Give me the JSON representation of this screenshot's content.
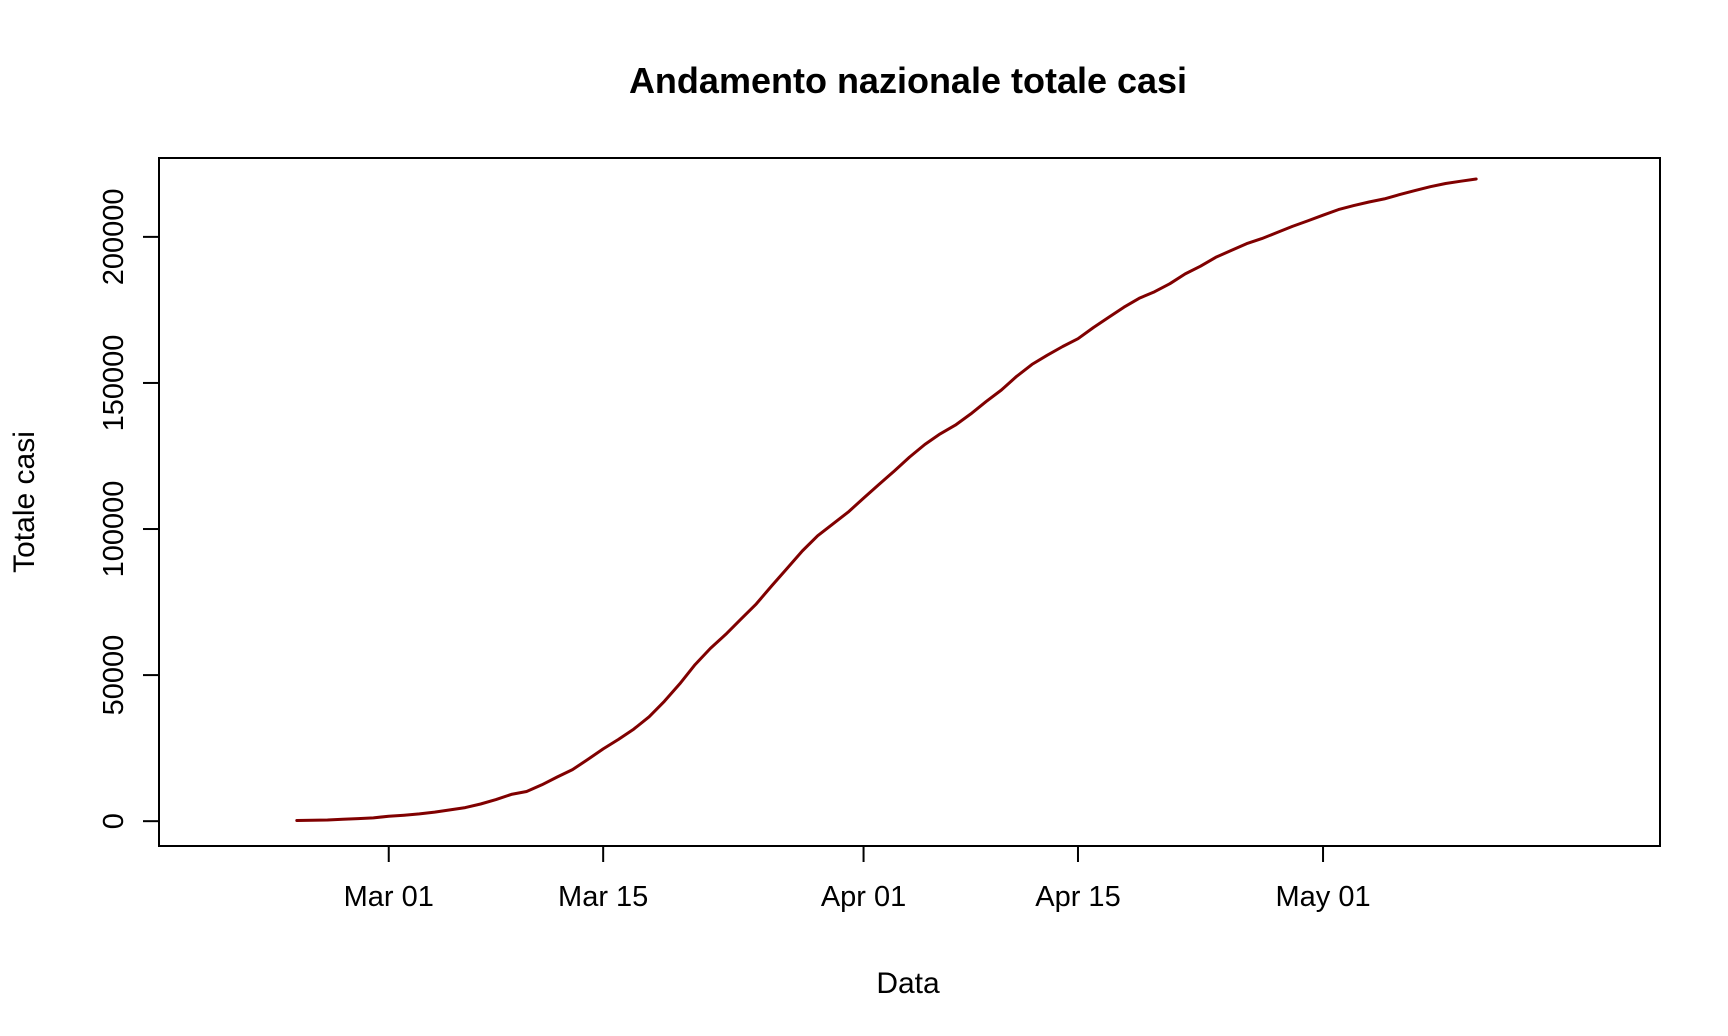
{
  "chart_data": {
    "type": "line",
    "title": "Andamento nazionale totale casi",
    "xlabel": "Data",
    "ylabel": "Totale casi",
    "x_type": "date",
    "xlim": [
      "2020-02-15",
      "2020-05-23"
    ],
    "ylim": [
      -8500,
      227000
    ],
    "x_ticks": [
      {
        "date": "2020-03-01",
        "label": "Mar 01"
      },
      {
        "date": "2020-03-15",
        "label": "Mar 15"
      },
      {
        "date": "2020-04-01",
        "label": "Apr 01"
      },
      {
        "date": "2020-04-15",
        "label": "Apr 15"
      },
      {
        "date": "2020-05-01",
        "label": "May 01"
      }
    ],
    "y_ticks": [
      {
        "value": 0,
        "label": "0"
      },
      {
        "value": 50000,
        "label": "50000"
      },
      {
        "value": 100000,
        "label": "100000"
      },
      {
        "value": 150000,
        "label": "150000"
      },
      {
        "value": 200000,
        "label": "200000"
      }
    ],
    "grid": false,
    "legend": "none",
    "series": [
      {
        "color": "#800000",
        "x": [
          "2020-02-24",
          "2020-02-25",
          "2020-02-26",
          "2020-02-27",
          "2020-02-28",
          "2020-02-29",
          "2020-03-01",
          "2020-03-02",
          "2020-03-03",
          "2020-03-04",
          "2020-03-05",
          "2020-03-06",
          "2020-03-07",
          "2020-03-08",
          "2020-03-09",
          "2020-03-10",
          "2020-03-11",
          "2020-03-12",
          "2020-03-13",
          "2020-03-14",
          "2020-03-15",
          "2020-03-16",
          "2020-03-17",
          "2020-03-18",
          "2020-03-19",
          "2020-03-20",
          "2020-03-21",
          "2020-03-22",
          "2020-03-23",
          "2020-03-24",
          "2020-03-25",
          "2020-03-26",
          "2020-03-27",
          "2020-03-28",
          "2020-03-29",
          "2020-03-30",
          "2020-03-31",
          "2020-04-01",
          "2020-04-02",
          "2020-04-03",
          "2020-04-04",
          "2020-04-05",
          "2020-04-06",
          "2020-04-07",
          "2020-04-08",
          "2020-04-09",
          "2020-04-10",
          "2020-04-11",
          "2020-04-12",
          "2020-04-13",
          "2020-04-14",
          "2020-04-15",
          "2020-04-16",
          "2020-04-17",
          "2020-04-18",
          "2020-04-19",
          "2020-04-20",
          "2020-04-21",
          "2020-04-22",
          "2020-04-23",
          "2020-04-24",
          "2020-04-25",
          "2020-04-26",
          "2020-04-27",
          "2020-04-28",
          "2020-04-29",
          "2020-04-30",
          "2020-05-01",
          "2020-05-02",
          "2020-05-03",
          "2020-05-04",
          "2020-05-05",
          "2020-05-06",
          "2020-05-07",
          "2020-05-08",
          "2020-05-09",
          "2020-05-10",
          "2020-05-11"
        ],
        "y": [
          229,
          322,
          400,
          650,
          888,
          1128,
          1694,
          2036,
          2502,
          3089,
          3858,
          4636,
          5883,
          7375,
          9172,
          10149,
          12462,
          15113,
          17660,
          21157,
          24747,
          27980,
          31506,
          35713,
          41035,
          47021,
          53578,
          59138,
          63927,
          69176,
          74386,
          80539,
          86498,
          92472,
          97689,
          101739,
          105792,
          110574,
          115242,
          119827,
          124632,
          128948,
          132547,
          135586,
          139422,
          143626,
          147577,
          152271,
          156363,
          159516,
          162488,
          165155,
          168941,
          172434,
          175925,
          178972,
          181228,
          183957,
          187327,
          189973,
          192994,
          195351,
          197675,
          199414,
          201505,
          203591,
          205463,
          207428,
          209328,
          210717,
          211938,
          213013,
          214457,
          215858,
          217185,
          218268,
          219070,
          219814
        ]
      }
    ]
  }
}
